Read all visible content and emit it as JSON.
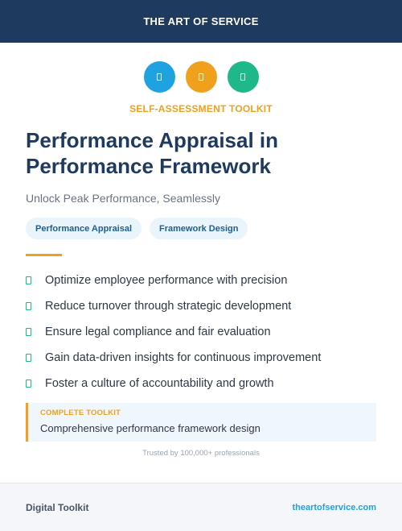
{
  "header": {
    "brand": "THE ART OF SERVICE"
  },
  "icons": [
    {
      "name": "document-icon",
      "color": "#1fa3e0"
    },
    {
      "name": "clipboard-icon",
      "color": "#f0a01c"
    },
    {
      "name": "checklist-icon",
      "color": "#1fb88a"
    }
  ],
  "kicker": "SELF-ASSESSMENT TOOLKIT",
  "title": "Performance Appraisal in Performance Framework",
  "subtitle": "Unlock Peak Performance, Seamlessly",
  "tags": [
    "Performance Appraisal",
    "Framework Design"
  ],
  "features": [
    "Optimize employee performance with precision",
    "Reduce turnover through strategic development",
    "Ensure legal compliance and fair evaluation",
    "Gain data-driven insights for continuous improvement",
    "Foster a culture of accountability and growth"
  ],
  "callout": {
    "label": "COMPLETE TOOLKIT",
    "text": "Comprehensive performance framework design"
  },
  "trusted": "Trusted by 100,000+ professionals",
  "footer": {
    "left": "Digital Toolkit",
    "right": "theartofservice.com"
  },
  "colors": {
    "navy": "#1e3a5f",
    "orange": "#f0a01c",
    "blue": "#1fa3e0",
    "green": "#1fb88a"
  }
}
